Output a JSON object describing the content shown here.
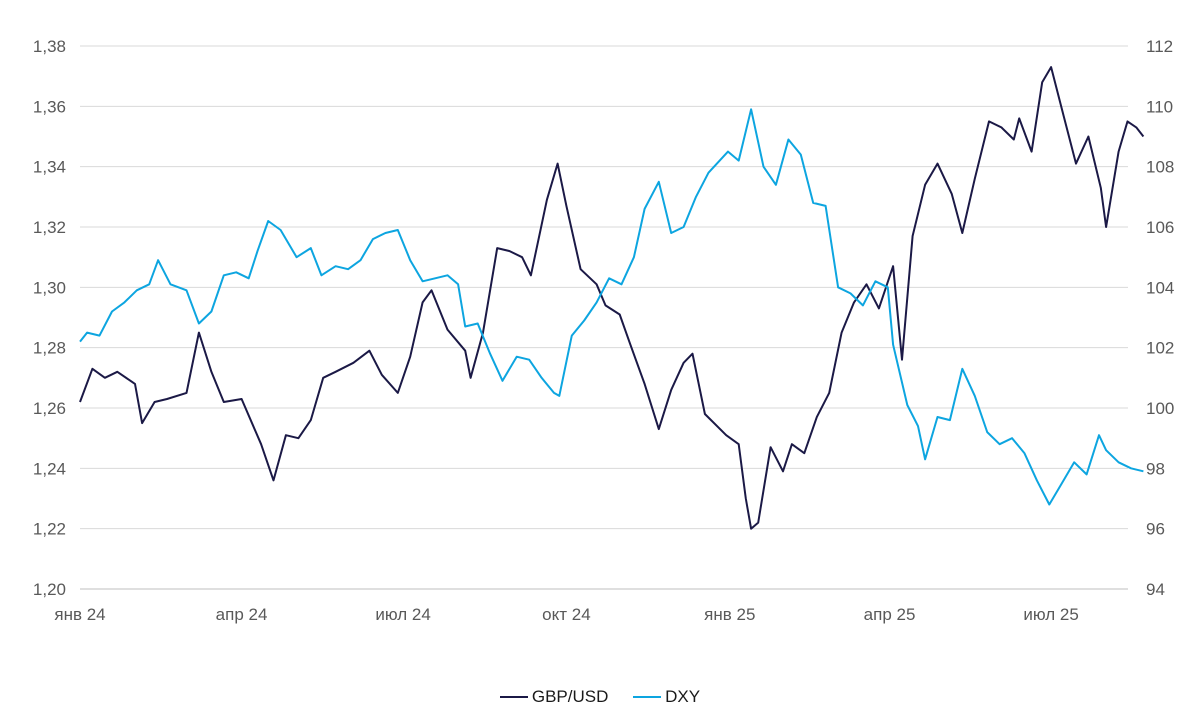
{
  "colors": {
    "gbpusd": "#1b1946",
    "dxy": "#0da5e0",
    "grid": "#d9d9d9",
    "text": "#595959"
  },
  "chart_data": {
    "type": "line",
    "title": "",
    "x_labels": [
      "янв 24",
      "апр 24",
      "июл 24",
      "окт 24",
      "янв 25",
      "апр 25",
      "июл 25"
    ],
    "x_range": [
      "2024-01-01",
      "2025-08-22"
    ],
    "y_left": {
      "ticks": [
        "1,38",
        "1,36",
        "1,34",
        "1,32",
        "1,30",
        "1,28",
        "1,26",
        "1,24",
        "1,22",
        "1,20"
      ],
      "range": [
        1.2,
        1.38
      ]
    },
    "y_right": {
      "ticks": [
        "112",
        "110",
        "108",
        "106",
        "104",
        "102",
        "100",
        "98",
        "96",
        "94"
      ],
      "range": [
        94,
        112
      ]
    },
    "grid": "horizontal",
    "legend_position": "bottom",
    "series": [
      {
        "name": "GBP/USD",
        "axis": "left",
        "points": [
          [
            "2024-01-01",
            1.262
          ],
          [
            "2024-01-08",
            1.273
          ],
          [
            "2024-01-15",
            1.27
          ],
          [
            "2024-01-22",
            1.272
          ],
          [
            "2024-02-01",
            1.268
          ],
          [
            "2024-02-05",
            1.255
          ],
          [
            "2024-02-12",
            1.262
          ],
          [
            "2024-02-19",
            1.263
          ],
          [
            "2024-03-01",
            1.265
          ],
          [
            "2024-03-08",
            1.285
          ],
          [
            "2024-03-15",
            1.272
          ],
          [
            "2024-03-22",
            1.262
          ],
          [
            "2024-04-01",
            1.263
          ],
          [
            "2024-04-12",
            1.248
          ],
          [
            "2024-04-19",
            1.236
          ],
          [
            "2024-04-26",
            1.251
          ],
          [
            "2024-05-03",
            1.25
          ],
          [
            "2024-05-10",
            1.256
          ],
          [
            "2024-05-17",
            1.27
          ],
          [
            "2024-05-24",
            1.272
          ],
          [
            "2024-06-03",
            1.275
          ],
          [
            "2024-06-12",
            1.279
          ],
          [
            "2024-06-19",
            1.271
          ],
          [
            "2024-06-28",
            1.265
          ],
          [
            "2024-07-05",
            1.277
          ],
          [
            "2024-07-12",
            1.295
          ],
          [
            "2024-07-17",
            1.299
          ],
          [
            "2024-07-26",
            1.286
          ],
          [
            "2024-08-05",
            1.279
          ],
          [
            "2024-08-08",
            1.27
          ],
          [
            "2024-08-15",
            1.285
          ],
          [
            "2024-08-23",
            1.313
          ],
          [
            "2024-08-30",
            1.312
          ],
          [
            "2024-09-06",
            1.31
          ],
          [
            "2024-09-11",
            1.304
          ],
          [
            "2024-09-20",
            1.329
          ],
          [
            "2024-09-26",
            1.341
          ],
          [
            "2024-10-01",
            1.327
          ],
          [
            "2024-10-09",
            1.306
          ],
          [
            "2024-10-18",
            1.301
          ],
          [
            "2024-10-23",
            1.294
          ],
          [
            "2024-10-31",
            1.291
          ],
          [
            "2024-11-06",
            1.281
          ],
          [
            "2024-11-14",
            1.268
          ],
          [
            "2024-11-22",
            1.253
          ],
          [
            "2024-11-29",
            1.266
          ],
          [
            "2024-12-06",
            1.275
          ],
          [
            "2024-12-11",
            1.278
          ],
          [
            "2024-12-18",
            1.258
          ],
          [
            "2024-12-30",
            1.251
          ],
          [
            "2025-01-06",
            1.248
          ],
          [
            "2025-01-10",
            1.23
          ],
          [
            "2025-01-13",
            1.22
          ],
          [
            "2025-01-17",
            1.222
          ],
          [
            "2025-01-24",
            1.247
          ],
          [
            "2025-01-31",
            1.239
          ],
          [
            "2025-02-05",
            1.248
          ],
          [
            "2025-02-12",
            1.245
          ],
          [
            "2025-02-19",
            1.257
          ],
          [
            "2025-02-26",
            1.265
          ],
          [
            "2025-03-05",
            1.285
          ],
          [
            "2025-03-12",
            1.295
          ],
          [
            "2025-03-19",
            1.301
          ],
          [
            "2025-03-26",
            1.293
          ],
          [
            "2025-04-03",
            1.307
          ],
          [
            "2025-04-08",
            1.276
          ],
          [
            "2025-04-14",
            1.317
          ],
          [
            "2025-04-21",
            1.334
          ],
          [
            "2025-04-28",
            1.341
          ],
          [
            "2025-05-06",
            1.331
          ],
          [
            "2025-05-12",
            1.318
          ],
          [
            "2025-05-19",
            1.336
          ],
          [
            "2025-05-27",
            1.355
          ],
          [
            "2025-06-03",
            1.353
          ],
          [
            "2025-06-10",
            1.349
          ],
          [
            "2025-06-13",
            1.356
          ],
          [
            "2025-06-20",
            1.345
          ],
          [
            "2025-06-26",
            1.368
          ],
          [
            "2025-07-01",
            1.373
          ],
          [
            "2025-07-08",
            1.357
          ],
          [
            "2025-07-15",
            1.341
          ],
          [
            "2025-07-22",
            1.35
          ],
          [
            "2025-07-29",
            1.333
          ],
          [
            "2025-08-01",
            1.32
          ],
          [
            "2025-08-08",
            1.345
          ],
          [
            "2025-08-13",
            1.355
          ],
          [
            "2025-08-18",
            1.353
          ],
          [
            "2025-08-22",
            1.35
          ]
        ]
      },
      {
        "name": "DXY",
        "axis": "right",
        "points": [
          [
            "2024-01-01",
            102.2
          ],
          [
            "2024-01-05",
            102.5
          ],
          [
            "2024-01-12",
            102.4
          ],
          [
            "2024-01-19",
            103.2
          ],
          [
            "2024-01-26",
            103.5
          ],
          [
            "2024-02-02",
            103.9
          ],
          [
            "2024-02-09",
            104.1
          ],
          [
            "2024-02-14",
            104.9
          ],
          [
            "2024-02-21",
            104.1
          ],
          [
            "2024-03-01",
            103.9
          ],
          [
            "2024-03-08",
            102.8
          ],
          [
            "2024-03-15",
            103.2
          ],
          [
            "2024-03-22",
            104.4
          ],
          [
            "2024-03-29",
            104.5
          ],
          [
            "2024-04-05",
            104.3
          ],
          [
            "2024-04-10",
            105.2
          ],
          [
            "2024-04-16",
            106.2
          ],
          [
            "2024-04-23",
            105.9
          ],
          [
            "2024-05-02",
            105.0
          ],
          [
            "2024-05-10",
            105.3
          ],
          [
            "2024-05-16",
            104.4
          ],
          [
            "2024-05-24",
            104.7
          ],
          [
            "2024-05-31",
            104.6
          ],
          [
            "2024-06-07",
            104.9
          ],
          [
            "2024-06-14",
            105.6
          ],
          [
            "2024-06-21",
            105.8
          ],
          [
            "2024-06-28",
            105.9
          ],
          [
            "2024-07-05",
            104.9
          ],
          [
            "2024-07-12",
            104.2
          ],
          [
            "2024-07-19",
            104.3
          ],
          [
            "2024-07-26",
            104.4
          ],
          [
            "2024-08-01",
            104.1
          ],
          [
            "2024-08-05",
            102.7
          ],
          [
            "2024-08-12",
            102.8
          ],
          [
            "2024-08-19",
            101.8
          ],
          [
            "2024-08-26",
            100.9
          ],
          [
            "2024-09-03",
            101.7
          ],
          [
            "2024-09-10",
            101.6
          ],
          [
            "2024-09-17",
            101.0
          ],
          [
            "2024-09-24",
            100.5
          ],
          [
            "2024-09-27",
            100.4
          ],
          [
            "2024-10-04",
            102.4
          ],
          [
            "2024-10-11",
            102.9
          ],
          [
            "2024-10-18",
            103.5
          ],
          [
            "2024-10-25",
            104.3
          ],
          [
            "2024-11-01",
            104.1
          ],
          [
            "2024-11-08",
            105.0
          ],
          [
            "2024-11-14",
            106.6
          ],
          [
            "2024-11-22",
            107.5
          ],
          [
            "2024-11-29",
            105.8
          ],
          [
            "2024-12-06",
            106.0
          ],
          [
            "2024-12-13",
            107.0
          ],
          [
            "2024-12-20",
            107.8
          ],
          [
            "2024-12-31",
            108.5
          ],
          [
            "2025-01-06",
            108.2
          ],
          [
            "2025-01-13",
            109.9
          ],
          [
            "2025-01-20",
            108.0
          ],
          [
            "2025-01-27",
            107.4
          ],
          [
            "2025-02-03",
            108.9
          ],
          [
            "2025-02-10",
            108.4
          ],
          [
            "2025-02-17",
            106.8
          ],
          [
            "2025-02-24",
            106.7
          ],
          [
            "2025-03-03",
            104.0
          ],
          [
            "2025-03-10",
            103.8
          ],
          [
            "2025-03-17",
            103.4
          ],
          [
            "2025-03-24",
            104.2
          ],
          [
            "2025-03-31",
            104.0
          ],
          [
            "2025-04-03",
            102.1
          ],
          [
            "2025-04-11",
            100.1
          ],
          [
            "2025-04-17",
            99.4
          ],
          [
            "2025-04-21",
            98.3
          ],
          [
            "2025-04-28",
            99.7
          ],
          [
            "2025-05-05",
            99.6
          ],
          [
            "2025-05-12",
            101.3
          ],
          [
            "2025-05-19",
            100.4
          ],
          [
            "2025-05-26",
            99.2
          ],
          [
            "2025-06-02",
            98.8
          ],
          [
            "2025-06-09",
            99.0
          ],
          [
            "2025-06-16",
            98.5
          ],
          [
            "2025-06-23",
            97.6
          ],
          [
            "2025-06-30",
            96.8
          ],
          [
            "2025-07-07",
            97.5
          ],
          [
            "2025-07-14",
            98.2
          ],
          [
            "2025-07-21",
            97.8
          ],
          [
            "2025-07-28",
            99.1
          ],
          [
            "2025-08-01",
            98.6
          ],
          [
            "2025-08-08",
            98.2
          ],
          [
            "2025-08-15",
            98.0
          ],
          [
            "2025-08-22",
            97.9
          ]
        ]
      }
    ]
  }
}
